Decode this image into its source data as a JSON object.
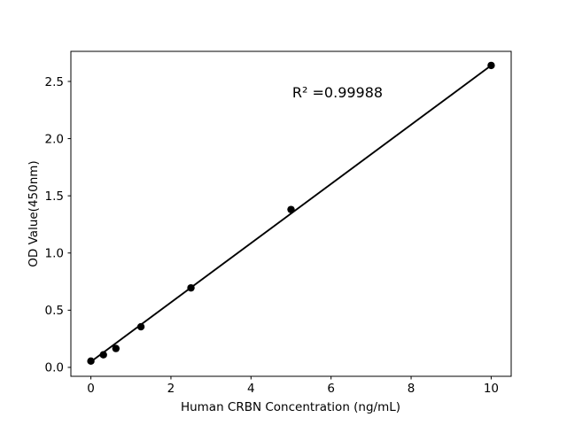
{
  "figure": {
    "background": "#ffffff"
  },
  "chart_data": {
    "type": "scatter",
    "title": "",
    "xlabel": "Human CRBN Concentration (ng/mL)",
    "ylabel": "OD Value(450nm)",
    "annotation": "R² =0.99988",
    "r_squared": 0.99988,
    "series": [
      {
        "name": "standard-curve-points",
        "x": [
          0,
          0.3125,
          0.625,
          1.25,
          2.5,
          5,
          10
        ],
        "y": [
          0.055,
          0.11,
          0.165,
          0.355,
          0.695,
          1.38,
          2.64
        ],
        "marker": "circle",
        "color": "#000000"
      }
    ],
    "fit_line": {
      "x1": 0,
      "y1": 0.05,
      "x2": 10,
      "y2": 2.64,
      "color": "#000000"
    },
    "x_ticks": {
      "values": [
        0,
        2,
        4,
        6,
        8,
        10
      ],
      "labels": [
        "0",
        "2",
        "4",
        "6",
        "8",
        "10"
      ]
    },
    "y_ticks": {
      "values": [
        0,
        0.5,
        1,
        1.5,
        2,
        2.5
      ],
      "labels": [
        "0.0",
        "0.5",
        "1.0",
        "1.5",
        "2.0",
        "2.5"
      ]
    },
    "xlim": [
      -0.5,
      10.5
    ],
    "ylim": [
      -0.078,
      2.763
    ],
    "grid": false,
    "legend_visible": false,
    "axis_color": "#000000",
    "text_color": "#000000",
    "background": "#ffffff"
  }
}
